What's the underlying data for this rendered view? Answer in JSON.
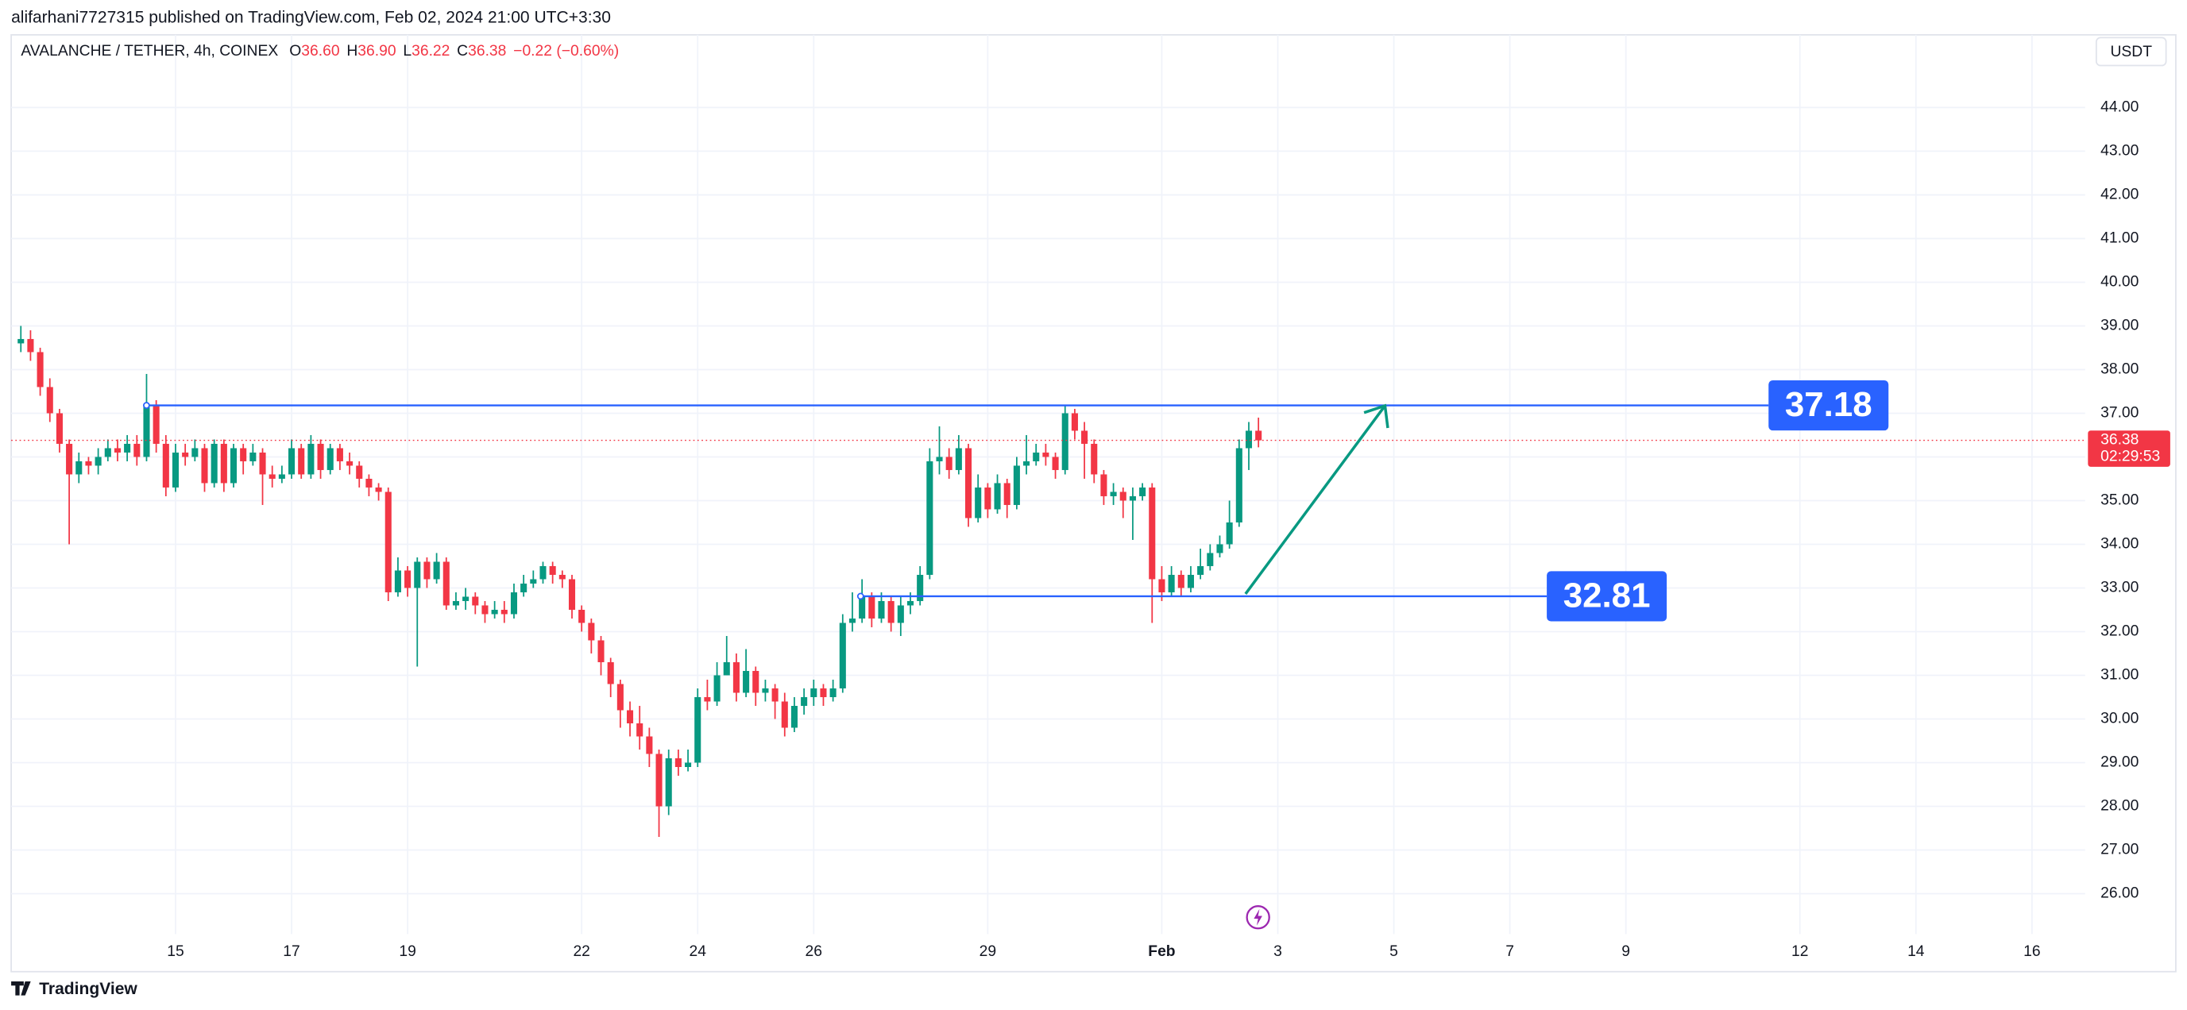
{
  "publisher_line": "alifarhani7727315 published on TradingView.com, Feb 02, 2024 21:00 UTC+3:30",
  "footer": "TradingView",
  "chart_data": {
    "type": "candlestick",
    "title": "AVALANCHE / TETHER, 4h, COINEX",
    "ohlc": [
      {
        "key": "O",
        "value": 36.6,
        "label": "36.60"
      },
      {
        "key": "H",
        "value": 36.9,
        "label": "36.90"
      },
      {
        "key": "L",
        "value": 36.22,
        "label": "36.22"
      },
      {
        "key": "C",
        "value": 36.38,
        "label": "36.38"
      }
    ],
    "change": "−0.22 (−0.60%)",
    "currency": "USDT",
    "up_color": "#089981",
    "down_color": "#f23645",
    "x": [
      296,
      300,
      304,
      308,
      312,
      316,
      320,
      324,
      328,
      332,
      336,
      340,
      344,
      348,
      352,
      356,
      360,
      364,
      368,
      372,
      376,
      380,
      384,
      388,
      392,
      396,
      400,
      404,
      408,
      412,
      416,
      420,
      424,
      428,
      432,
      436,
      440,
      444,
      448,
      452,
      456,
      460,
      464,
      468,
      472,
      476,
      480,
      484,
      488,
      492,
      496,
      500,
      504,
      508,
      512,
      516,
      520,
      524,
      528,
      532,
      536,
      540,
      544,
      548,
      552,
      556,
      560,
      564,
      568,
      572,
      576,
      580,
      584,
      588,
      592,
      596,
      600,
      604,
      608,
      612,
      616,
      620,
      624,
      628,
      632,
      636,
      640,
      644,
      648,
      652,
      656,
      660,
      664,
      668,
      672,
      676,
      680,
      684,
      688,
      692,
      696,
      700,
      704,
      708,
      712,
      716,
      720,
      724,
      728,
      732,
      736,
      740,
      744,
      748,
      752,
      756,
      760,
      764,
      768,
      772,
      776,
      780,
      784,
      788,
      792,
      796,
      800,
      804,
      808
    ],
    "open": [
      38.6,
      38.7,
      38.4,
      37.6,
      37.0,
      36.3,
      35.6,
      35.9,
      35.8,
      36.0,
      36.2,
      36.1,
      36.3,
      36.0,
      37.2,
      36.3,
      35.3,
      36.1,
      36.0,
      36.2,
      35.4,
      36.3,
      35.4,
      36.2,
      35.9,
      36.1,
      35.6,
      35.5,
      35.6,
      36.2,
      35.6,
      36.3,
      35.7,
      36.2,
      35.9,
      35.8,
      35.5,
      35.3,
      35.2,
      32.9,
      33.4,
      33.0,
      33.6,
      33.2,
      33.6,
      32.6,
      32.7,
      32.8,
      32.6,
      32.4,
      32.5,
      32.4,
      32.9,
      33.1,
      33.2,
      33.5,
      33.3,
      33.2,
      32.5,
      32.2,
      31.8,
      31.3,
      30.8,
      30.2,
      29.9,
      29.6,
      29.2,
      28.0,
      29.1,
      28.9,
      29.0,
      30.5,
      30.4,
      31.0,
      31.3,
      30.6,
      31.1,
      30.6,
      30.7,
      30.4,
      29.8,
      30.3,
      30.5,
      30.7,
      30.5,
      30.7,
      32.2,
      32.3,
      32.8,
      32.3,
      32.7,
      32.2,
      32.6,
      32.7,
      33.3,
      35.9,
      36.0,
      35.7,
      36.2,
      34.6,
      35.3,
      34.8,
      35.4,
      34.9,
      35.8,
      35.9,
      36.1,
      36.0,
      35.7,
      37.0,
      36.6,
      36.3,
      35.6,
      35.1,
      35.2,
      35.0,
      35.1,
      35.3,
      33.2,
      32.9,
      33.3,
      33.0,
      33.3,
      33.5,
      33.8,
      34.0,
      34.5,
      36.2,
      36.6
    ],
    "high": [
      39.0,
      38.9,
      38.5,
      37.8,
      37.1,
      36.4,
      36.1,
      36.0,
      36.2,
      36.4,
      36.4,
      36.5,
      36.5,
      37.9,
      37.3,
      36.5,
      36.3,
      36.3,
      36.4,
      36.3,
      36.4,
      36.4,
      36.3,
      36.3,
      36.3,
      36.2,
      35.8,
      35.8,
      36.4,
      36.3,
      36.5,
      36.4,
      36.3,
      36.3,
      36.1,
      35.9,
      35.6,
      35.4,
      35.3,
      33.7,
      33.5,
      33.7,
      33.7,
      33.8,
      33.7,
      32.9,
      33.0,
      32.9,
      32.7,
      32.7,
      32.7,
      33.1,
      33.3,
      33.4,
      33.6,
      33.6,
      33.4,
      33.3,
      32.6,
      32.3,
      31.9,
      31.4,
      30.9,
      30.4,
      30.3,
      29.8,
      29.3,
      29.3,
      29.3,
      29.3,
      30.7,
      30.9,
      31.3,
      31.9,
      31.5,
      31.6,
      31.2,
      30.9,
      30.8,
      30.6,
      30.5,
      30.7,
      30.9,
      30.8,
      30.9,
      32.4,
      32.9,
      33.2,
      32.9,
      32.9,
      32.8,
      32.8,
      32.9,
      33.5,
      36.2,
      36.7,
      36.2,
      36.5,
      36.3,
      35.6,
      35.4,
      35.6,
      35.5,
      36.0,
      36.5,
      36.3,
      36.3,
      36.1,
      37.2,
      37.1,
      36.8,
      36.4,
      35.7,
      35.4,
      35.3,
      35.3,
      35.4,
      35.4,
      33.5,
      33.5,
      33.4,
      33.5,
      33.9,
      34.0,
      34.2,
      35.0,
      36.4,
      36.8,
      36.9
    ],
    "low": [
      38.4,
      38.2,
      37.4,
      36.8,
      36.1,
      34.0,
      35.4,
      35.6,
      35.6,
      35.9,
      35.9,
      35.9,
      35.8,
      35.9,
      36.1,
      35.1,
      35.2,
      35.8,
      35.9,
      35.2,
      35.3,
      35.2,
      35.3,
      35.6,
      35.8,
      34.9,
      35.3,
      35.4,
      35.5,
      35.5,
      35.5,
      35.5,
      35.6,
      35.7,
      35.6,
      35.3,
      35.1,
      35.0,
      32.7,
      32.8,
      32.8,
      31.2,
      33.0,
      33.1,
      32.5,
      32.5,
      32.5,
      32.4,
      32.2,
      32.3,
      32.2,
      32.3,
      32.8,
      33.0,
      33.1,
      33.1,
      33.0,
      32.3,
      32.0,
      31.5,
      31.0,
      30.5,
      29.8,
      29.6,
      29.3,
      28.9,
      27.3,
      27.8,
      28.7,
      28.8,
      28.9,
      30.2,
      30.3,
      31.0,
      30.4,
      30.5,
      30.3,
      30.4,
      30.0,
      29.6,
      29.7,
      30.1,
      30.3,
      30.3,
      30.4,
      30.6,
      32.0,
      32.2,
      32.1,
      32.2,
      32.0,
      31.9,
      32.4,
      32.6,
      33.2,
      35.6,
      35.5,
      35.6,
      34.4,
      34.5,
      34.6,
      34.7,
      34.6,
      34.8,
      35.6,
      35.8,
      35.8,
      35.5,
      35.6,
      36.4,
      35.5,
      35.4,
      34.9,
      34.9,
      34.6,
      34.1,
      35.0,
      32.2,
      32.7,
      32.8,
      32.8,
      32.9,
      33.2,
      33.4,
      33.7,
      33.9,
      34.4,
      35.7,
      36.22
    ],
    "close": [
      38.7,
      38.4,
      37.6,
      37.0,
      36.3,
      35.6,
      35.9,
      35.8,
      36.0,
      36.2,
      36.1,
      36.3,
      36.0,
      37.2,
      36.3,
      35.3,
      36.1,
      36.0,
      36.2,
      35.4,
      36.3,
      35.4,
      36.2,
      35.9,
      36.1,
      35.6,
      35.5,
      35.6,
      36.2,
      35.6,
      36.3,
      35.7,
      36.2,
      35.9,
      35.8,
      35.5,
      35.3,
      35.2,
      32.9,
      33.4,
      33.0,
      33.6,
      33.2,
      33.6,
      32.6,
      32.7,
      32.8,
      32.6,
      32.4,
      32.5,
      32.4,
      32.9,
      33.1,
      33.2,
      33.5,
      33.3,
      33.2,
      32.5,
      32.2,
      31.8,
      31.3,
      30.8,
      30.2,
      29.9,
      29.6,
      29.2,
      28.0,
      29.1,
      28.9,
      29.0,
      30.5,
      30.4,
      31.0,
      31.3,
      30.6,
      31.1,
      30.6,
      30.7,
      30.4,
      29.8,
      30.3,
      30.5,
      30.7,
      30.5,
      30.7,
      32.2,
      32.3,
      32.8,
      32.3,
      32.7,
      32.2,
      32.6,
      32.7,
      33.3,
      35.9,
      36.0,
      35.7,
      36.2,
      34.6,
      35.3,
      34.8,
      35.4,
      34.9,
      35.8,
      35.9,
      36.1,
      36.0,
      35.7,
      37.0,
      36.6,
      36.3,
      35.6,
      35.1,
      35.2,
      35.0,
      35.1,
      35.3,
      33.2,
      32.9,
      33.3,
      33.0,
      33.3,
      33.5,
      33.8,
      34.0,
      34.5,
      36.2,
      36.6,
      36.38
    ],
    "xlim": [
      292,
      1150
    ],
    "xticks": [
      {
        "value": 360,
        "label": "15"
      },
      {
        "value": 408,
        "label": "17"
      },
      {
        "value": 456,
        "label": "19"
      },
      {
        "value": 528,
        "label": "22"
      },
      {
        "value": 576,
        "label": "24"
      },
      {
        "value": 624,
        "label": "26"
      },
      {
        "value": 696,
        "label": "29"
      },
      {
        "value": 768,
        "label": "Feb"
      },
      {
        "value": 816,
        "label": "3"
      },
      {
        "value": 864,
        "label": "5"
      },
      {
        "value": 912,
        "label": "7"
      },
      {
        "value": 960,
        "label": "9"
      },
      {
        "value": 1032,
        "label": "12"
      },
      {
        "value": 1080,
        "label": "14"
      },
      {
        "value": 1128,
        "label": "16"
      }
    ],
    "ylim": [
      25.14,
      44.93
    ],
    "yticks": [
      {
        "value": 26,
        "label": "26.00"
      },
      {
        "value": 27,
        "label": "27.00"
      },
      {
        "value": 28,
        "label": "28.00"
      },
      {
        "value": 29,
        "label": "29.00"
      },
      {
        "value": 30,
        "label": "30.00"
      },
      {
        "value": 31,
        "label": "31.00"
      },
      {
        "value": 32,
        "label": "32.00"
      },
      {
        "value": 33,
        "label": "33.00"
      },
      {
        "value": 34,
        "label": "34.00"
      },
      {
        "value": 35,
        "label": "35.00"
      },
      {
        "value": 36,
        "label": "36.00"
      },
      {
        "value": 37,
        "label": "37.00"
      },
      {
        "value": 38,
        "label": "38.00"
      },
      {
        "value": 39,
        "label": "39.00"
      },
      {
        "value": 40,
        "label": "40.00"
      },
      {
        "value": 41,
        "label": "41.00"
      },
      {
        "value": 42,
        "label": "42.00"
      },
      {
        "value": 43,
        "label": "43.00"
      },
      {
        "value": 44,
        "label": "44.00"
      }
    ],
    "grid": true,
    "levels": [
      {
        "value": 37.18,
        "color": "#2962ff"
      },
      {
        "value": 32.81,
        "color": "#2962ff"
      }
    ],
    "last_price": {
      "value": 36.38,
      "countdown": "02:29:53",
      "color": "#f23645"
    }
  }
}
